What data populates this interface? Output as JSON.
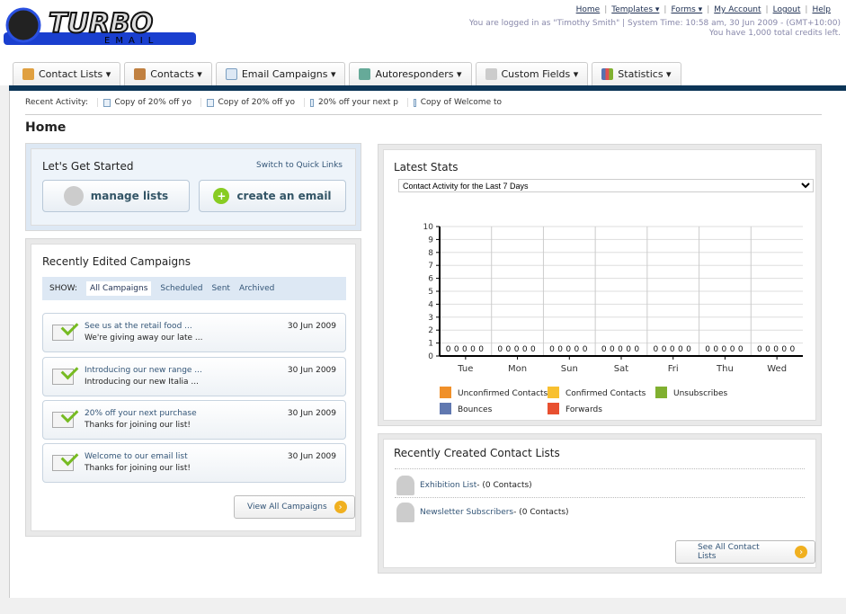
{
  "header": {
    "logo_text": "TURBO",
    "logo_sub": "EMAIL",
    "links": [
      "Home",
      "Templates ▾",
      "Forms ▾",
      "My Account",
      "Logout",
      "Help"
    ],
    "login_info": "You are logged in as \"Timothy Smith\" | System Time: 10:58 am, 30 Jun 2009 - (GMT+10:00)",
    "credits": "You have 1,000 total credits left."
  },
  "tabs": [
    {
      "label": "Contact Lists ▾",
      "color": "#e0a040"
    },
    {
      "label": "Contacts ▾",
      "color": "#c08040"
    },
    {
      "label": "Email Campaigns ▾",
      "color": "#7a9ec0"
    },
    {
      "label": "Autoresponders ▾",
      "color": "#6a9"
    },
    {
      "label": "Custom Fields ▾",
      "color": "#aaa"
    },
    {
      "label": "Statistics ▾",
      "color": "#5572b0"
    }
  ],
  "recent": {
    "label": "Recent Activity:",
    "items": [
      "Copy of 20% off yo",
      "Copy of 20% off yo",
      "20% off your next p",
      "Copy of Welcome to"
    ]
  },
  "page_title": "Home",
  "get_started": {
    "title": "Let's Get Started",
    "switch": "Switch to Quick Links",
    "manage": "manage lists",
    "create": "create an email"
  },
  "campaigns": {
    "title": "Recently Edited Campaigns",
    "show_label": "SHOW:",
    "filters": [
      "All Campaigns",
      "Scheduled",
      "Sent",
      "Archived"
    ],
    "items": [
      {
        "title": "See us at the retail food ...",
        "sub": "We're giving away our late ...",
        "date": "30 Jun 2009"
      },
      {
        "title": "Introducing our new range ...",
        "sub": "Introducing our new Italia ...",
        "date": "30 Jun 2009"
      },
      {
        "title": "20% off your next purchase",
        "sub": "Thanks for joining our list!",
        "date": "30 Jun 2009"
      },
      {
        "title": "Welcome to our email list",
        "sub": "Thanks for joining our list!",
        "date": "30 Jun 2009"
      }
    ],
    "view_all": "View All Campaigns"
  },
  "stats": {
    "title": "Latest Stats",
    "select": "Contact Activity for the Last 7 Days"
  },
  "chart_data": {
    "type": "bar",
    "categories": [
      "Tue",
      "Mon",
      "Sun",
      "Sat",
      "Fri",
      "Thu",
      "Wed"
    ],
    "ylim": [
      0,
      10
    ],
    "yticks": [
      0,
      1,
      2,
      3,
      4,
      5,
      6,
      7,
      8,
      9,
      10
    ],
    "grid": true,
    "legend": "bottom",
    "series": [
      {
        "name": "Unconfirmed Contacts",
        "color": "#f0902a",
        "values": [
          0,
          0,
          0,
          0,
          0,
          0,
          0
        ]
      },
      {
        "name": "Confirmed Contacts",
        "color": "#f8c030",
        "values": [
          0,
          0,
          0,
          0,
          0,
          0,
          0
        ]
      },
      {
        "name": "Unsubscribes",
        "color": "#80b030",
        "values": [
          0,
          0,
          0,
          0,
          0,
          0,
          0
        ]
      },
      {
        "name": "Bounces",
        "color": "#6078b0",
        "values": [
          0,
          0,
          0,
          0,
          0,
          0,
          0
        ]
      },
      {
        "name": "Forwards",
        "color": "#e85030",
        "values": [
          0,
          0,
          0,
          0,
          0,
          0,
          0
        ]
      }
    ]
  },
  "contact_lists": {
    "title": "Recently Created Contact Lists",
    "items": [
      {
        "name": "Exhibition List",
        "count": " - (0 Contacts)"
      },
      {
        "name": "Newsletter Subscribers",
        "count": " - (0 Contacts)"
      }
    ],
    "see_all": "See All Contact Lists"
  }
}
